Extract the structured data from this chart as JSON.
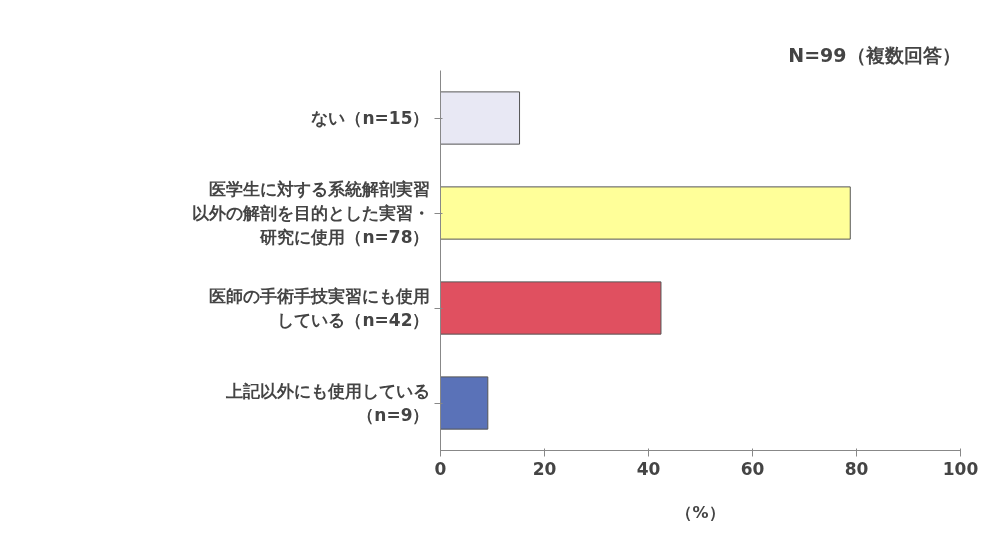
{
  "chart_data": {
    "type": "bar",
    "orientation": "horizontal",
    "title": "N=99（複数回答）",
    "xlabel": "（%）",
    "categories": [
      "ない（n=15）",
      "医学生に対する系統解剖実習以外の解剖を目的とした実習・研究に使用（n=78）",
      "医師の手術手技実習にも使用している（n=42）",
      "上記以外にも使用している（n=9）"
    ],
    "values": [
      15.2,
      78.8,
      42.4,
      9.1
    ],
    "colors": [
      "#e8e8f4",
      "#ffff99",
      "#e05060",
      "#5a72b8"
    ],
    "xlim": [
      0,
      100
    ],
    "xticks": [
      0,
      20,
      40,
      60,
      80,
      100
    ],
    "grid": false
  }
}
